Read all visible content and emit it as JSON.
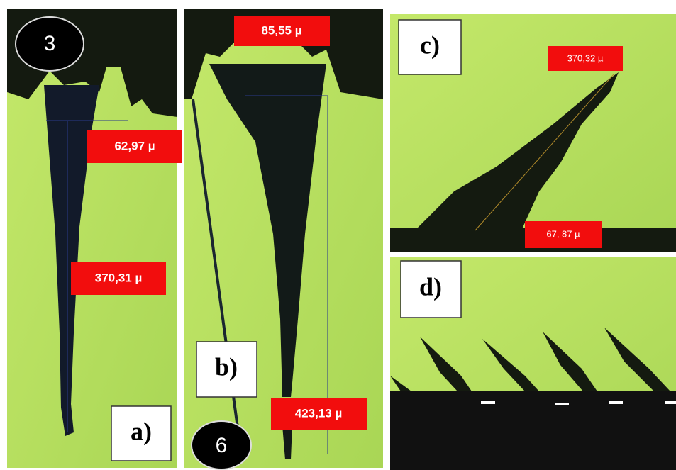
{
  "panels": [
    {
      "label": "a)",
      "badge": "3",
      "measurements": [
        "62,97 µ",
        "370,31 µ"
      ]
    },
    {
      "label": "b)",
      "badge": "6",
      "measurements": [
        "85,55 µ",
        "423,13 µ"
      ]
    },
    {
      "label": "c)",
      "measurements": [
        "370,32 µ",
        "67, 87 µ"
      ]
    },
    {
      "label": "d)"
    }
  ]
}
